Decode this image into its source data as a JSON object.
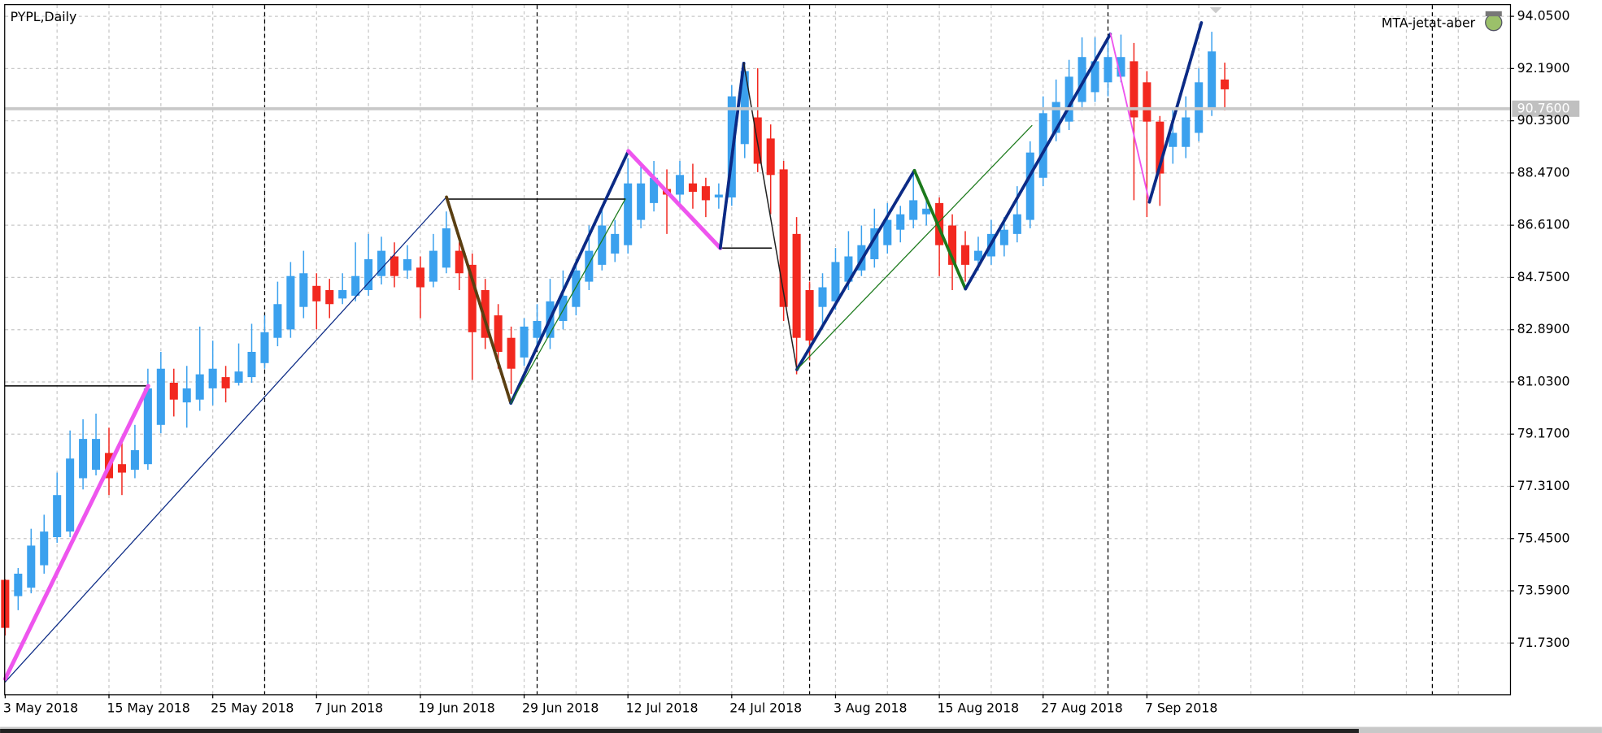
{
  "chart_data": {
    "type": "candlestick",
    "title": "PYPL,Daily",
    "indicator_label": "MTA-jetat-aber",
    "categories": [
      "3 May 2018",
      null,
      null,
      null,
      null,
      null,
      null,
      null,
      "15 May 2018",
      null,
      null,
      null,
      null,
      null,
      null,
      null,
      "25 May 2018",
      null,
      null,
      null,
      null,
      null,
      null,
      null,
      "7 Jun 2018",
      null,
      null,
      null,
      null,
      null,
      null,
      null,
      "19 Jun 2018",
      null,
      null,
      null,
      null,
      null,
      null,
      null,
      "29 Jun 2018",
      null,
      null,
      null,
      null,
      null,
      null,
      null,
      "12 Jul 2018",
      null,
      null,
      null,
      null,
      null,
      null,
      null,
      "24 Jul 2018",
      null,
      null,
      null,
      null,
      null,
      null,
      null,
      "3 Aug 2018",
      null,
      null,
      null,
      null,
      null,
      null,
      null,
      "15 Aug 2018",
      null,
      null,
      null,
      null,
      null,
      null,
      null,
      "27 Aug 2018",
      null,
      null,
      null,
      null,
      null,
      null,
      null,
      "7 Sep 2018",
      null,
      null,
      null,
      null,
      null,
      null
    ],
    "open": [
      73.98,
      73.4,
      73.7,
      74.5,
      75.5,
      75.7,
      77.6,
      77.9,
      78.5,
      78.1,
      77.9,
      78.1,
      79.5,
      81.0,
      80.3,
      80.4,
      80.8,
      81.2,
      81.0,
      81.2,
      81.7,
      82.6,
      82.9,
      83.7,
      84.45,
      84.3,
      84.0,
      84.1,
      84.3,
      84.8,
      85.5,
      85.0,
      85.1,
      84.6,
      85.1,
      85.7,
      85.2,
      84.3,
      83.4,
      82.6,
      81.9,
      82.6,
      82.6,
      83.2,
      83.7,
      84.6,
      85.2,
      85.6,
      85.9,
      86.8,
      87.4,
      87.9,
      87.7,
      88.1,
      88.0,
      87.6,
      87.6,
      89.5,
      90.45,
      89.7,
      88.6,
      86.3,
      84.3,
      83.7,
      83.9,
      84.6,
      85.0,
      85.4,
      85.9,
      86.45,
      86.8,
      87.0,
      87.4,
      86.6,
      85.9,
      85.35,
      85.5,
      85.9,
      86.3,
      86.8,
      88.3,
      89.9,
      90.3,
      91.0,
      91.35,
      91.7,
      91.9,
      92.45,
      91.7,
      90.3,
      89.4,
      89.4,
      89.9,
      90.8,
      91.8
    ],
    "high": [
      74.0,
      74.4,
      75.8,
      76.3,
      77.8,
      79.3,
      79.7,
      79.9,
      79.4,
      78.9,
      79.5,
      81.5,
      82.1,
      81.5,
      81.6,
      83.0,
      82.5,
      81.6,
      82.4,
      83.1,
      83.4,
      84.6,
      85.3,
      85.7,
      84.9,
      84.7,
      84.9,
      86.0,
      86.3,
      86.2,
      86.0,
      85.9,
      85.5,
      86.3,
      87.1,
      86.0,
      85.6,
      84.7,
      83.8,
      83.0,
      83.3,
      83.8,
      84.7,
      85.0,
      85.4,
      86.6,
      87.3,
      86.8,
      89.0,
      88.7,
      88.9,
      88.6,
      88.9,
      88.8,
      88.3,
      88.1,
      91.6,
      92.3,
      92.2,
      90.2,
      88.9,
      86.9,
      84.6,
      84.9,
      85.8,
      86.4,
      86.6,
      87.2,
      87.4,
      87.3,
      88.5,
      87.6,
      87.6,
      87.0,
      86.4,
      86.2,
      86.8,
      86.9,
      88.0,
      89.6,
      91.2,
      91.8,
      92.5,
      93.3,
      93.3,
      93.3,
      93.4,
      93.1,
      92.1,
      90.5,
      90.8,
      91.2,
      92.2,
      93.5,
      92.4
    ],
    "low": [
      72.0,
      72.9,
      73.5,
      74.2,
      75.3,
      75.5,
      77.2,
      77.7,
      77.0,
      77.0,
      77.6,
      77.9,
      79.2,
      79.8,
      79.4,
      80.0,
      80.2,
      80.3,
      80.9,
      81.0,
      81.5,
      82.3,
      82.6,
      83.3,
      82.9,
      83.3,
      83.8,
      83.9,
      84.1,
      84.5,
      84.4,
      84.7,
      83.3,
      84.4,
      84.9,
      84.3,
      81.1,
      82.2,
      81.5,
      80.6,
      81.6,
      82.3,
      82.2,
      82.9,
      83.4,
      84.3,
      85.0,
      85.3,
      85.6,
      86.5,
      87.1,
      86.3,
      87.3,
      87.2,
      86.9,
      87.2,
      87.3,
      89.0,
      88.5,
      87.0,
      83.2,
      81.3,
      81.8,
      82.9,
      83.6,
      84.3,
      84.8,
      85.1,
      85.6,
      86.0,
      86.5,
      86.6,
      84.8,
      84.3,
      84.6,
      85.0,
      85.2,
      85.5,
      86.0,
      86.5,
      88.0,
      89.6,
      90.0,
      90.7,
      91.0,
      91.2,
      91.7,
      87.5,
      86.9,
      87.3,
      88.8,
      89.0,
      89.6,
      90.5,
      90.7
    ],
    "close": [
      72.27,
      74.2,
      75.2,
      75.7,
      77.0,
      78.3,
      79.0,
      79.0,
      77.6,
      77.8,
      78.6,
      80.8,
      81.5,
      80.4,
      80.8,
      81.3,
      81.5,
      80.8,
      81.4,
      82.1,
      82.8,
      83.8,
      84.8,
      84.9,
      83.9,
      83.8,
      84.3,
      84.8,
      85.4,
      85.7,
      84.8,
      85.4,
      84.4,
      85.7,
      86.5,
      84.9,
      82.8,
      82.6,
      82.1,
      81.5,
      83.0,
      83.2,
      83.9,
      84.1,
      85.0,
      85.7,
      86.6,
      86.3,
      88.1,
      88.1,
      88.3,
      87.7,
      88.4,
      87.8,
      87.5,
      87.7,
      91.2,
      92.1,
      88.8,
      88.4,
      83.7,
      82.6,
      82.5,
      84.4,
      85.3,
      85.5,
      85.9,
      86.5,
      86.8,
      87.0,
      87.5,
      87.2,
      85.9,
      85.2,
      85.2,
      85.7,
      86.3,
      86.45,
      87.0,
      89.2,
      90.6,
      91.0,
      91.9,
      92.6,
      92.45,
      92.6,
      92.6,
      90.45,
      90.3,
      88.45,
      89.9,
      90.45,
      91.7,
      92.8,
      91.45
    ],
    "up_color": "#3ba1ee",
    "down_color": "#f2281f",
    "ylim": [
      69.98,
      94.45
    ],
    "yticks": [
      {
        "value": 71.73,
        "label": "71.7300"
      },
      {
        "value": 73.59,
        "label": "73.5900"
      },
      {
        "value": 75.45,
        "label": "75.4500"
      },
      {
        "value": 77.31,
        "label": "77.3100"
      },
      {
        "value": 79.17,
        "label": "79.1700"
      },
      {
        "value": 81.03,
        "label": "81.0300"
      },
      {
        "value": 82.89,
        "label": "82.8900"
      },
      {
        "value": 84.75,
        "label": "84.7500"
      },
      {
        "value": 86.61,
        "label": "86.6100"
      },
      {
        "value": 88.47,
        "label": "88.4700"
      },
      {
        "value": 90.33,
        "label": "90.3300"
      },
      {
        "value": 92.19,
        "label": "92.1900"
      },
      {
        "value": 94.05,
        "label": "94.0500"
      }
    ],
    "current_price": {
      "value": 90.76,
      "label": "90.7600"
    },
    "grid": true
  }
}
